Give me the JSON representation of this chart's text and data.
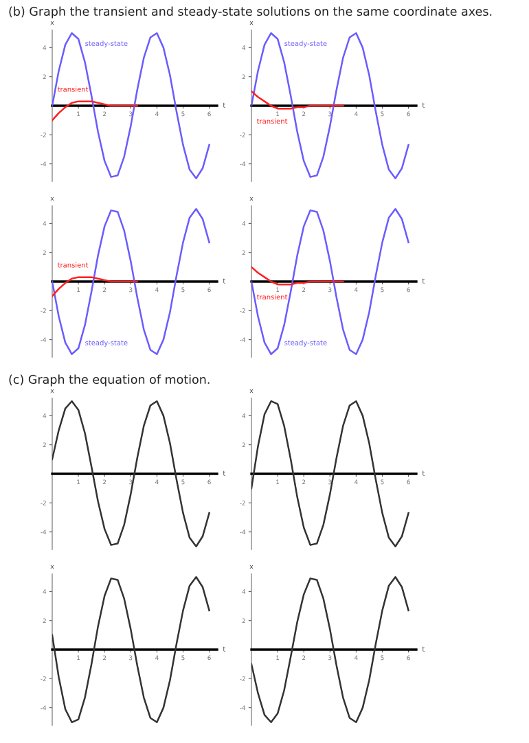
{
  "chart_data": [
    {
      "type": "line",
      "title": "(b) Graph the transient and steady-state solutions on the same coordinate axes.",
      "xlabel": "t",
      "ylabel": "x",
      "xlim": [
        0,
        6.3
      ],
      "ylim": [
        -5.2,
        5.2
      ],
      "xticks": [
        1,
        2,
        3,
        4,
        5,
        6
      ],
      "yticks": [
        -4,
        -2,
        2,
        4
      ],
      "grid": false,
      "legend": false,
      "series": [
        {
          "name": "steady-state",
          "color": "#6a5cff",
          "x": [
            0,
            0.25,
            0.5,
            0.75,
            1,
            1.25,
            1.5,
            1.75,
            2,
            2.25,
            2.5,
            2.75,
            3,
            3.25,
            3.5,
            3.75,
            4,
            4.25,
            4.5,
            4.75,
            5,
            5.25,
            5.5,
            5.75,
            6
          ],
          "values": [
            0,
            2.4,
            4.2,
            5.0,
            4.6,
            3.0,
            0.7,
            -1.8,
            -3.8,
            -4.9,
            -4.8,
            -3.5,
            -1.4,
            1.1,
            3.3,
            4.7,
            5.0,
            4.0,
            2.1,
            -0.4,
            -2.7,
            -4.4,
            -5.0,
            -4.3,
            -2.7
          ]
        },
        {
          "name": "transient",
          "color": "#ff2020",
          "x": [
            0,
            0.25,
            0.5,
            0.75,
            1,
            1.25,
            1.5,
            1.75,
            2,
            2.25,
            2.5,
            2.75,
            3,
            3.25
          ],
          "values": [
            -1,
            -0.5,
            -0.1,
            0.2,
            0.3,
            0.3,
            0.3,
            0.2,
            0.1,
            0,
            0,
            0,
            0,
            0
          ]
        }
      ]
    },
    {
      "type": "line",
      "xlabel": "t",
      "ylabel": "x",
      "xlim": [
        0,
        6.3
      ],
      "ylim": [
        -5.2,
        5.2
      ],
      "xticks": [
        1,
        2,
        3,
        4,
        5,
        6
      ],
      "yticks": [
        -4,
        -2,
        2,
        4
      ],
      "grid": false,
      "legend": false,
      "series": [
        {
          "name": "steady-state",
          "color": "#6a5cff",
          "x": [
            0,
            0.25,
            0.5,
            0.75,
            1,
            1.25,
            1.5,
            1.75,
            2,
            2.25,
            2.5,
            2.75,
            3,
            3.25,
            3.5,
            3.75,
            4,
            4.25,
            4.5,
            4.75,
            5,
            5.25,
            5.5,
            5.75,
            6
          ],
          "values": [
            0,
            2.4,
            4.2,
            5.0,
            4.6,
            3.0,
            0.7,
            -1.8,
            -3.8,
            -4.9,
            -4.8,
            -3.5,
            -1.4,
            1.1,
            3.3,
            4.7,
            5.0,
            4.0,
            2.1,
            -0.4,
            -2.7,
            -4.4,
            -5.0,
            -4.3,
            -2.7
          ]
        },
        {
          "name": "transient",
          "color": "#ff2020",
          "x": [
            0,
            0.25,
            0.5,
            0.75,
            1,
            1.25,
            1.5,
            1.75,
            2,
            2.25,
            2.5,
            2.75,
            3,
            3.25,
            3.5
          ],
          "values": [
            1,
            0.6,
            0.3,
            0,
            -0.2,
            -0.2,
            -0.2,
            -0.1,
            -0.1,
            0,
            0,
            0,
            0,
            0,
            0
          ]
        }
      ]
    },
    {
      "type": "line",
      "xlabel": "t",
      "ylabel": "x",
      "xlim": [
        0,
        6.3
      ],
      "ylim": [
        -5.2,
        5.2
      ],
      "xticks": [
        1,
        2,
        3,
        4,
        5,
        6
      ],
      "yticks": [
        -4,
        -2,
        2,
        4
      ],
      "grid": false,
      "legend": false,
      "series": [
        {
          "name": "steady-state",
          "color": "#6a5cff",
          "x": [
            0,
            0.25,
            0.5,
            0.75,
            1,
            1.25,
            1.5,
            1.75,
            2,
            2.25,
            2.5,
            2.75,
            3,
            3.25,
            3.5,
            3.75,
            4,
            4.25,
            4.5,
            4.75,
            5,
            5.25,
            5.5,
            5.75,
            6
          ],
          "values": [
            0,
            -2.4,
            -4.2,
            -5.0,
            -4.6,
            -3.0,
            -0.7,
            1.8,
            3.8,
            4.9,
            4.8,
            3.5,
            1.4,
            -1.1,
            -3.3,
            -4.7,
            -5.0,
            -4.0,
            -2.1,
            0.4,
            2.7,
            4.4,
            5.0,
            4.3,
            2.7
          ]
        },
        {
          "name": "transient",
          "color": "#ff2020",
          "x": [
            0,
            0.25,
            0.5,
            0.75,
            1,
            1.25,
            1.5,
            1.75,
            2,
            2.25,
            2.5,
            2.75,
            3,
            3.25
          ],
          "values": [
            -1,
            -0.5,
            -0.1,
            0.2,
            0.3,
            0.3,
            0.3,
            0.2,
            0.1,
            0,
            0,
            0,
            0,
            0
          ]
        }
      ]
    },
    {
      "type": "line",
      "xlabel": "t",
      "ylabel": "x",
      "xlim": [
        0,
        6.3
      ],
      "ylim": [
        -5.2,
        5.2
      ],
      "xticks": [
        1,
        2,
        3,
        4,
        5,
        6
      ],
      "yticks": [
        -4,
        -2,
        2,
        4
      ],
      "grid": false,
      "legend": false,
      "series": [
        {
          "name": "steady-state",
          "color": "#6a5cff",
          "x": [
            0,
            0.25,
            0.5,
            0.75,
            1,
            1.25,
            1.5,
            1.75,
            2,
            2.25,
            2.5,
            2.75,
            3,
            3.25,
            3.5,
            3.75,
            4,
            4.25,
            4.5,
            4.75,
            5,
            5.25,
            5.5,
            5.75,
            6
          ],
          "values": [
            0,
            -2.4,
            -4.2,
            -5.0,
            -4.6,
            -3.0,
            -0.7,
            1.8,
            3.8,
            4.9,
            4.8,
            3.5,
            1.4,
            -1.1,
            -3.3,
            -4.7,
            -5.0,
            -4.0,
            -2.1,
            0.4,
            2.7,
            4.4,
            5.0,
            4.3,
            2.7
          ]
        },
        {
          "name": "transient",
          "color": "#ff2020",
          "x": [
            0,
            0.25,
            0.5,
            0.75,
            1,
            1.25,
            1.5,
            1.75,
            2,
            2.25,
            2.5,
            2.75,
            3,
            3.25,
            3.5
          ],
          "values": [
            1,
            0.6,
            0.3,
            0,
            -0.2,
            -0.2,
            -0.2,
            -0.1,
            -0.1,
            0,
            0,
            0,
            0,
            0,
            0
          ]
        }
      ]
    },
    {
      "type": "line",
      "title": "(c) Graph the equation of motion.",
      "xlabel": "t",
      "ylabel": "x",
      "xlim": [
        0,
        6.3
      ],
      "ylim": [
        -5.2,
        5.2
      ],
      "xticks": [
        1,
        2,
        3,
        4,
        5,
        6
      ],
      "yticks": [
        -4,
        -2,
        2,
        4
      ],
      "grid": false,
      "legend": false,
      "series": [
        {
          "color": "#333333",
          "x": [
            0,
            0.25,
            0.5,
            0.75,
            1,
            1.25,
            1.5,
            1.75,
            2,
            2.25,
            2.5,
            2.75,
            3,
            3.25,
            3.5,
            3.75,
            4,
            4.25,
            4.5,
            4.75,
            5,
            5.25,
            5.5,
            5.75,
            6
          ],
          "values": [
            1,
            3.0,
            4.5,
            5.0,
            4.4,
            2.8,
            0.5,
            -1.9,
            -3.8,
            -4.9,
            -4.8,
            -3.5,
            -1.4,
            1.1,
            3.3,
            4.7,
            5.0,
            4.0,
            2.1,
            -0.4,
            -2.7,
            -4.4,
            -5.0,
            -4.3,
            -2.7
          ]
        }
      ]
    },
    {
      "type": "line",
      "xlabel": "t",
      "ylabel": "x",
      "xlim": [
        0,
        6.3
      ],
      "ylim": [
        -5.2,
        5.2
      ],
      "xticks": [
        1,
        2,
        3,
        4,
        5,
        6
      ],
      "yticks": [
        -4,
        -2,
        2,
        4
      ],
      "grid": false,
      "legend": false,
      "series": [
        {
          "color": "#333333",
          "x": [
            0,
            0.25,
            0.5,
            0.75,
            1,
            1.25,
            1.5,
            1.75,
            2,
            2.25,
            2.5,
            2.75,
            3,
            3.25,
            3.5,
            3.75,
            4,
            4.25,
            4.5,
            4.75,
            5,
            5.25,
            5.5,
            5.75,
            6
          ],
          "values": [
            -1,
            1.9,
            4.1,
            5.0,
            4.8,
            3.3,
            1.0,
            -1.6,
            -3.7,
            -4.9,
            -4.8,
            -3.5,
            -1.4,
            1.1,
            3.3,
            4.7,
            5.0,
            4.0,
            2.1,
            -0.4,
            -2.7,
            -4.4,
            -5.0,
            -4.3,
            -2.7
          ]
        }
      ]
    },
    {
      "type": "line",
      "xlabel": "t",
      "ylabel": "x",
      "xlim": [
        0,
        6.3
      ],
      "ylim": [
        -5.2,
        5.2
      ],
      "xticks": [
        1,
        2,
        3,
        4,
        5,
        6
      ],
      "yticks": [
        -4,
        -2,
        2,
        4
      ],
      "grid": false,
      "legend": false,
      "series": [
        {
          "color": "#333333",
          "x": [
            0,
            0.25,
            0.5,
            0.75,
            1,
            1.25,
            1.5,
            1.75,
            2,
            2.25,
            2.5,
            2.75,
            3,
            3.25,
            3.5,
            3.75,
            4,
            4.25,
            4.5,
            4.75,
            5,
            5.25,
            5.5,
            5.75,
            6
          ],
          "values": [
            1,
            -1.9,
            -4.1,
            -5.0,
            -4.8,
            -3.3,
            -1.0,
            1.6,
            3.7,
            4.9,
            4.8,
            3.5,
            1.4,
            -1.1,
            -3.3,
            -4.7,
            -5.0,
            -4.0,
            -2.1,
            0.4,
            2.7,
            4.4,
            5.0,
            4.3,
            2.7
          ]
        }
      ]
    },
    {
      "type": "line",
      "xlabel": "t",
      "ylabel": "x",
      "xlim": [
        0,
        6.3
      ],
      "ylim": [
        -5.2,
        5.2
      ],
      "xticks": [
        1,
        2,
        3,
        4,
        5,
        6
      ],
      "yticks": [
        -4,
        -2,
        2,
        4
      ],
      "grid": false,
      "legend": false,
      "series": [
        {
          "color": "#333333",
          "x": [
            0,
            0.25,
            0.5,
            0.75,
            1,
            1.25,
            1.5,
            1.75,
            2,
            2.25,
            2.5,
            2.75,
            3,
            3.25,
            3.5,
            3.75,
            4,
            4.25,
            4.5,
            4.75,
            5,
            5.25,
            5.5,
            5.75,
            6
          ],
          "values": [
            -1,
            -3.0,
            -4.5,
            -5.0,
            -4.4,
            -2.8,
            -0.5,
            1.9,
            3.8,
            4.9,
            4.8,
            3.5,
            1.4,
            -1.1,
            -3.3,
            -4.7,
            -5.0,
            -4.0,
            -2.1,
            0.4,
            2.7,
            4.4,
            5.0,
            4.3,
            2.7
          ]
        }
      ]
    }
  ]
}
